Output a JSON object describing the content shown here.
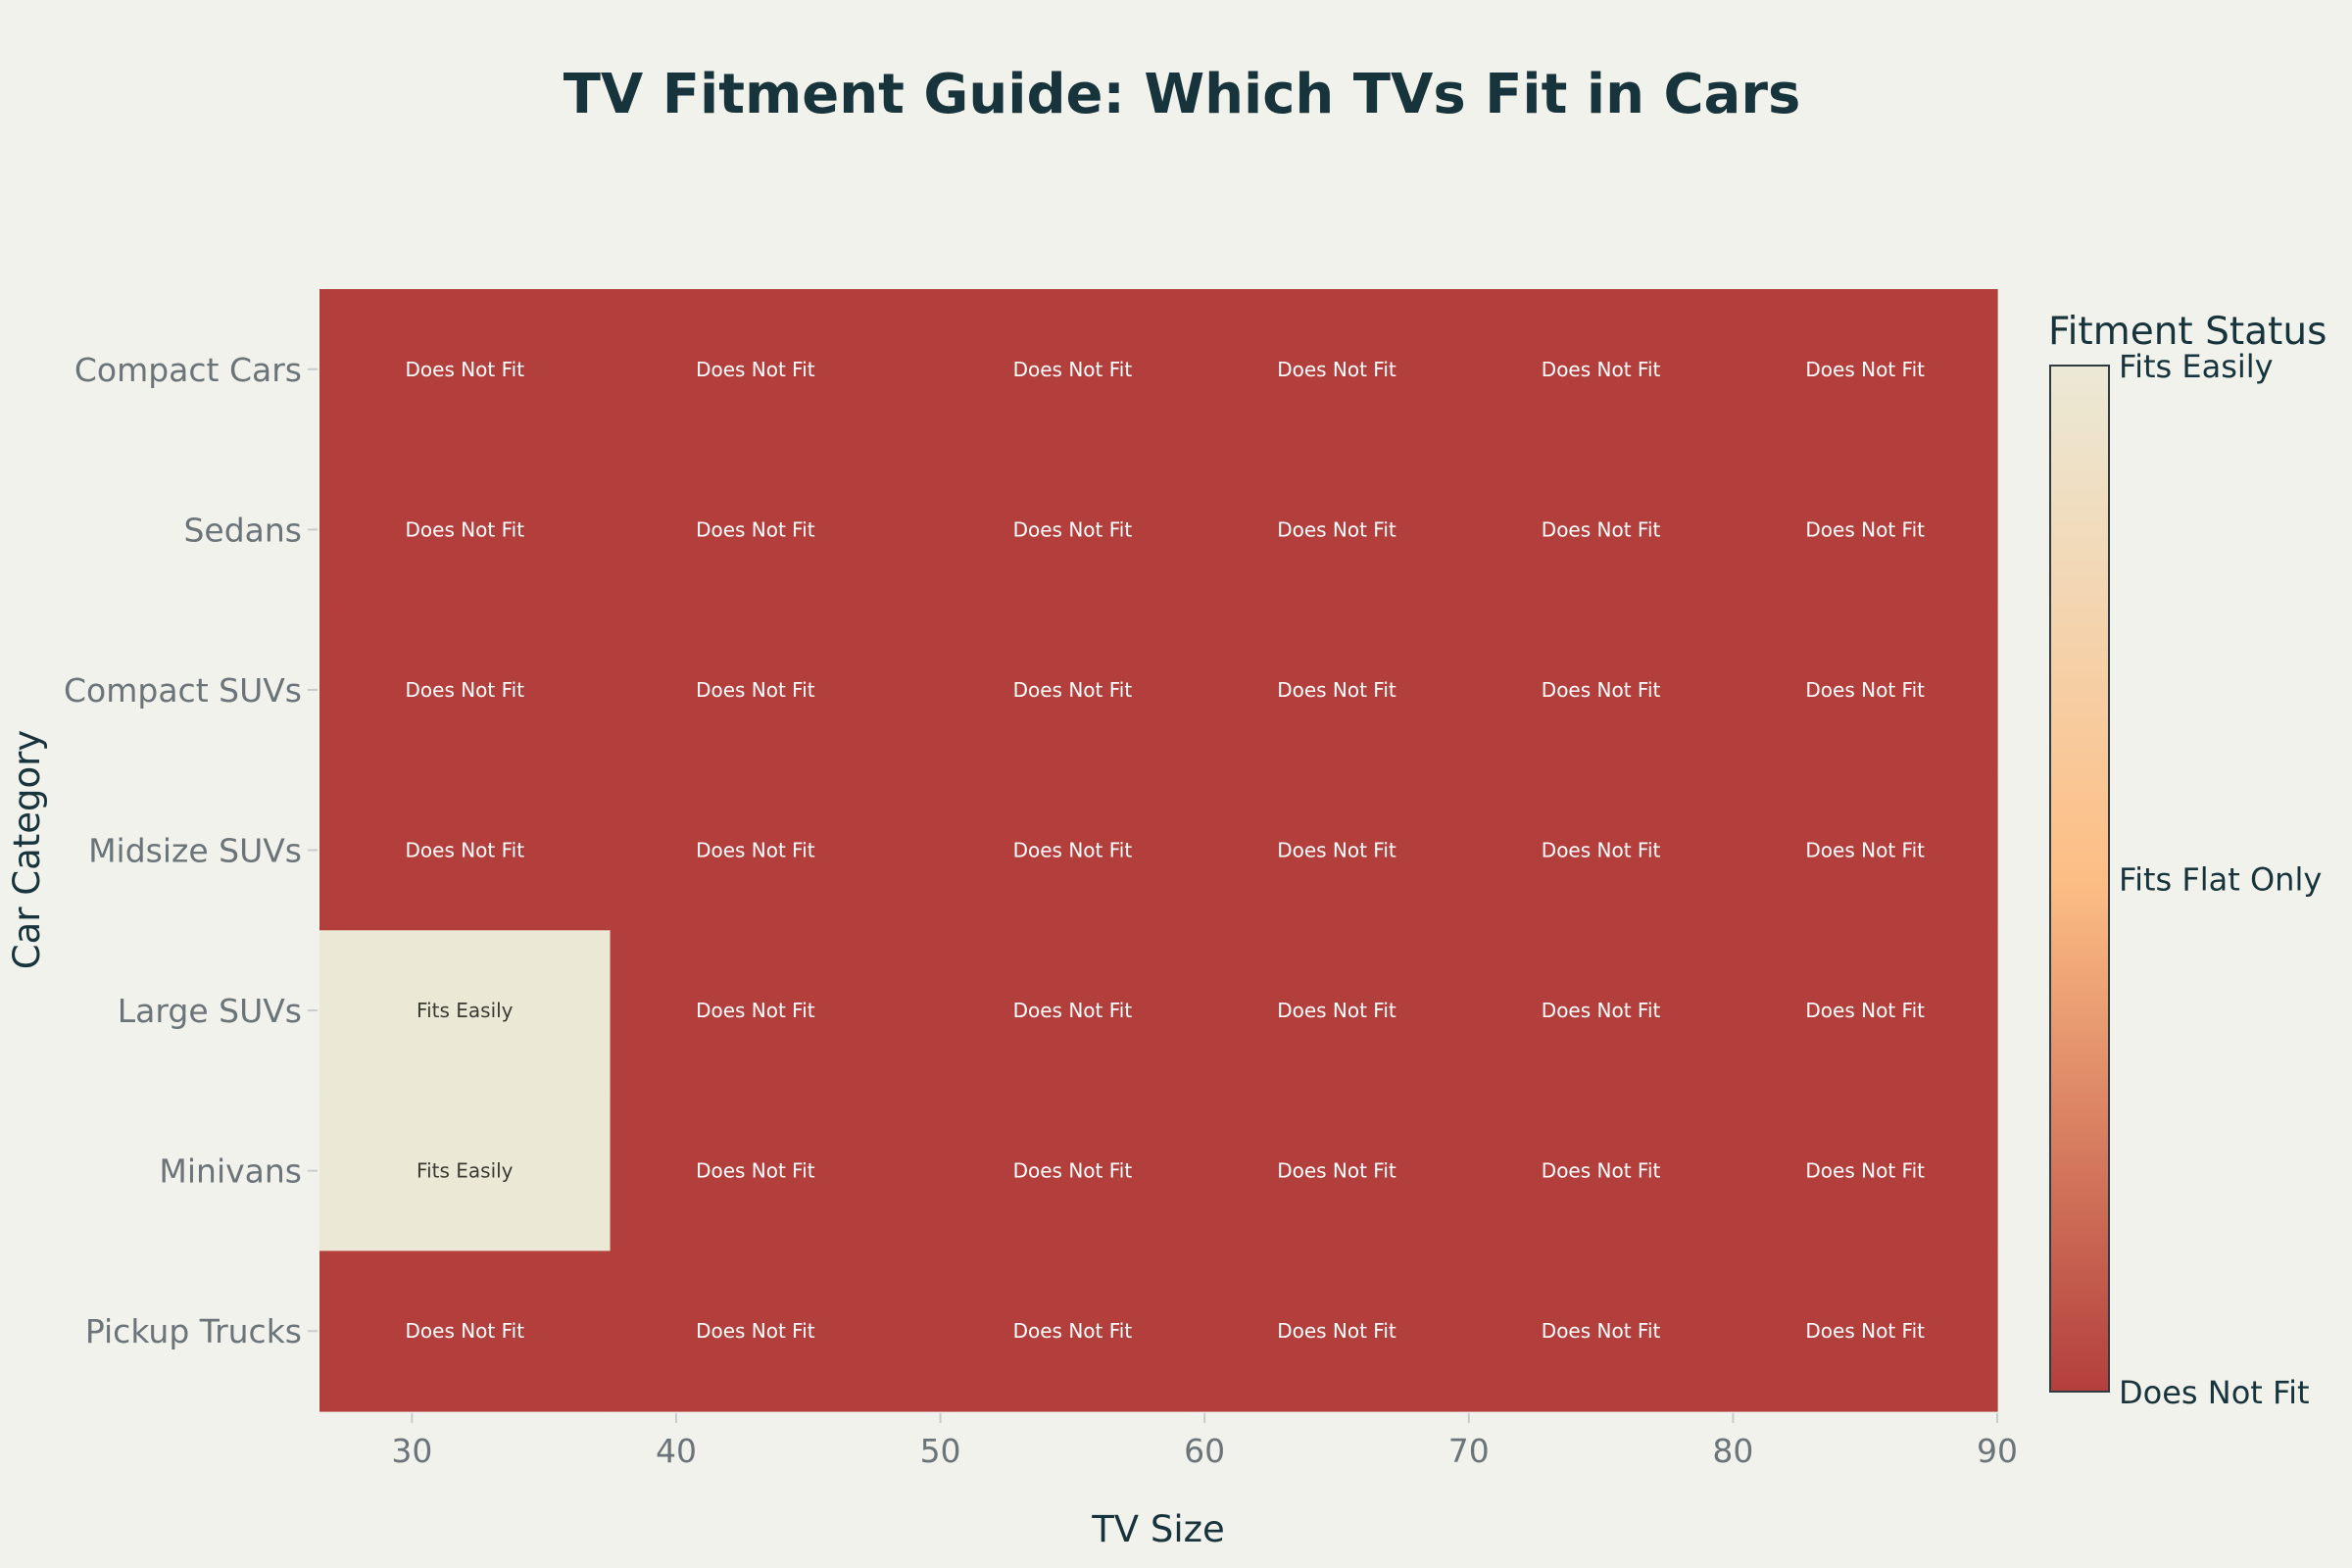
{
  "chart_data": {
    "type": "heatmap",
    "title": "TV Fitment Guide: Which TVs Fit in Cars",
    "xlabel": "TV Size",
    "ylabel": "Car Category",
    "x_ticks": [
      "30",
      "40",
      "50",
      "60",
      "70",
      "80",
      "90"
    ],
    "xlim": [
      26.5,
      90
    ],
    "columns": [
      {
        "x0": 26.5,
        "x1": 37.5,
        "center": 32
      },
      {
        "x0": 37.5,
        "x1": 50.5,
        "center": 43
      },
      {
        "x0": 50.5,
        "x1": 59.5,
        "center": 55
      },
      {
        "x0": 59.5,
        "x1": 69.5,
        "center": 65
      },
      {
        "x0": 69.5,
        "x1": 79.5,
        "center": 75
      },
      {
        "x0": 79.5,
        "x1": 90,
        "center": 85
      }
    ],
    "categories": [
      "Compact Cars",
      "Sedans",
      "Compact SUVs",
      "Midsize SUVs",
      "Large SUVs",
      "Minivans",
      "Pickup Trucks"
    ],
    "values": [
      [
        0,
        0,
        0,
        0,
        0,
        0
      ],
      [
        0,
        0,
        0,
        0,
        0,
        0
      ],
      [
        0,
        0,
        0,
        0,
        0,
        0
      ],
      [
        0,
        0,
        0,
        0,
        0,
        0
      ],
      [
        2,
        0,
        0,
        0,
        0,
        0
      ],
      [
        2,
        0,
        0,
        0,
        0,
        0
      ],
      [
        0,
        0,
        0,
        0,
        0,
        0
      ]
    ],
    "status_labels": [
      "Does Not Fit",
      "Fits Flat Only",
      "Fits Easily"
    ],
    "colorbar": {
      "title": "Fitment Status",
      "ticks": [
        "Does Not Fit",
        "Fits Flat Only",
        "Fits Easily"
      ],
      "range": [
        0,
        2
      ],
      "colors": [
        "#b33f3c",
        "#fdbe85",
        "#ebe9d6"
      ]
    },
    "grid": false
  }
}
